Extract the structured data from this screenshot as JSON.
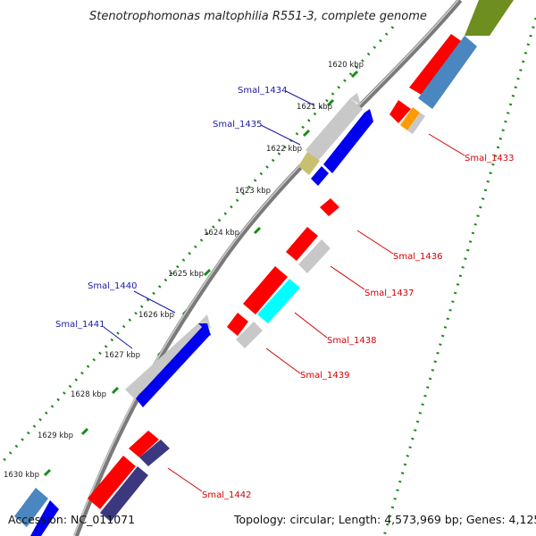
{
  "title": "Stenotrophomonas maltophilia R551-3, complete genome",
  "footer": {
    "accession": "Accession: NC_011071",
    "stats": "Topology: circular; Length: 4,573,969 bp; Genes: 4,125"
  },
  "kbp_labels": [
    "1620 kbp",
    "1621 kbp",
    "1622 kbp",
    "1623 kbp",
    "1624 kbp",
    "1625 kbp",
    "1626 kbp",
    "1627 kbp",
    "1628 kbp",
    "1629 kbp",
    "1630 kbp"
  ],
  "genes_left": [
    "Smal_1434",
    "Smal_1435",
    "Smal_1440",
    "Smal_1441"
  ],
  "genes_right": [
    "Smal_1433",
    "Smal_1436",
    "Smal_1437",
    "Smal_1438",
    "Smal_1439",
    "Smal_1442"
  ],
  "colors": {
    "red": "#ff0000",
    "blue": "#0000ee",
    "gray": "#c8c8c8",
    "steel": "#4a86c0",
    "cyan": "#00ffff",
    "navy": "#3c3880",
    "olive": "#6e8e20",
    "khaki": "#c8c070",
    "orange": "#ff9a00",
    "dots": "#1a8a1a",
    "backbone": "#7a7a7a"
  }
}
